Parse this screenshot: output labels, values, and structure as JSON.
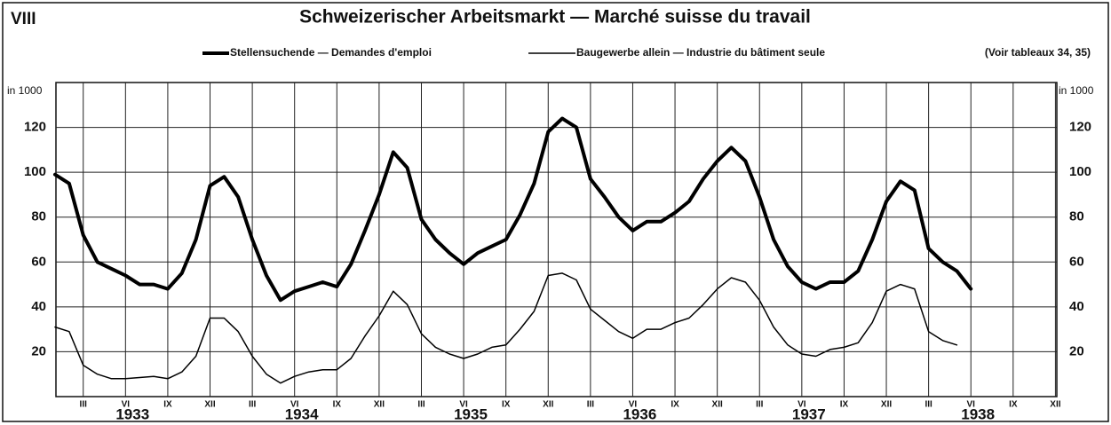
{
  "chart_data": {
    "type": "line",
    "badge": "VIII",
    "title": "Schweizerischer Arbeitsmarkt — Marché suisse du travail",
    "note": "(Voir tableaux 34, 35)",
    "ylabel": "in 1000",
    "x": [
      "1933-01",
      "1933-02",
      "1933-03",
      "1933-04",
      "1933-05",
      "1933-06",
      "1933-07",
      "1933-08",
      "1933-09",
      "1933-10",
      "1933-11",
      "1933-12",
      "1934-01",
      "1934-02",
      "1934-03",
      "1934-04",
      "1934-05",
      "1934-06",
      "1934-07",
      "1934-08",
      "1934-09",
      "1934-10",
      "1934-11",
      "1934-12",
      "1935-01",
      "1935-02",
      "1935-03",
      "1935-04",
      "1935-05",
      "1935-06",
      "1935-07",
      "1935-08",
      "1935-09",
      "1935-10",
      "1935-11",
      "1935-12",
      "1936-01",
      "1936-02",
      "1936-03",
      "1936-04",
      "1936-05",
      "1936-06",
      "1936-07",
      "1936-08",
      "1936-09",
      "1936-10",
      "1936-11",
      "1936-12",
      "1937-01",
      "1937-02",
      "1937-03",
      "1937-04",
      "1937-05",
      "1937-06",
      "1937-07",
      "1937-08",
      "1937-09",
      "1937-10",
      "1937-11",
      "1937-12",
      "1938-01",
      "1938-02",
      "1938-03",
      "1938-04",
      "1938-05",
      "1938-06"
    ],
    "series": [
      {
        "name": "Stellensuchende — Demandes d'emploi",
        "color": "#000000",
        "linewidth": 4,
        "values": [
          99,
          95,
          72,
          60,
          57,
          54,
          50,
          50,
          48,
          55,
          70,
          94,
          98,
          89,
          70,
          54,
          43,
          47,
          49,
          51,
          49,
          59,
          74,
          90,
          109,
          102,
          79,
          70,
          64,
          59,
          64,
          67,
          70,
          81,
          95,
          118,
          124,
          120,
          97,
          89,
          80,
          74,
          78,
          78,
          82,
          87,
          97,
          105,
          111,
          105,
          89,
          70,
          58,
          51,
          48,
          51,
          51,
          56,
          70,
          87,
          96,
          92,
          66,
          60,
          56,
          48
        ]
      },
      {
        "name": "Baugewerbe allein — Industrie du bâtiment seule",
        "color": "#000000",
        "linewidth": 1.5,
        "values": [
          31,
          29,
          14,
          10,
          8,
          8,
          8.5,
          9,
          8,
          11,
          18,
          35,
          35,
          29,
          18,
          10,
          6,
          9,
          11,
          12,
          12,
          17,
          27,
          36,
          47,
          41,
          28,
          22,
          19,
          17,
          19,
          22,
          23,
          30,
          38,
          54,
          55,
          52,
          39,
          34,
          29,
          26,
          30,
          30,
          33,
          35,
          41,
          48,
          53,
          51,
          43,
          31,
          23,
          19,
          18,
          21,
          22,
          24,
          33,
          47,
          50,
          48,
          29,
          25,
          23,
          null
        ]
      }
    ],
    "xlim": [
      "1933-01",
      "1938-12"
    ],
    "xticks": [
      {
        "value": "1933-03",
        "label": "III"
      },
      {
        "value": "1933-06",
        "label": "VI"
      },
      {
        "value": "1933-09",
        "label": "IX"
      },
      {
        "value": "1933-12",
        "label": "XII"
      },
      {
        "value": "1934-03",
        "label": "III"
      },
      {
        "value": "1934-06",
        "label": "VI"
      },
      {
        "value": "1934-09",
        "label": "IX"
      },
      {
        "value": "1934-12",
        "label": "XII"
      },
      {
        "value": "1935-03",
        "label": "III"
      },
      {
        "value": "1935-06",
        "label": "VI"
      },
      {
        "value": "1935-09",
        "label": "IX"
      },
      {
        "value": "1935-12",
        "label": "XII"
      },
      {
        "value": "1936-03",
        "label": "III"
      },
      {
        "value": "1936-06",
        "label": "VI"
      },
      {
        "value": "1936-09",
        "label": "IX"
      },
      {
        "value": "1936-12",
        "label": "XII"
      },
      {
        "value": "1937-03",
        "label": "III"
      },
      {
        "value": "1937-06",
        "label": "VI"
      },
      {
        "value": "1937-09",
        "label": "IX"
      },
      {
        "value": "1937-12",
        "label": "XII"
      },
      {
        "value": "1938-03",
        "label": "III"
      },
      {
        "value": "1938-06",
        "label": "VI"
      },
      {
        "value": "1938-09",
        "label": "IX"
      },
      {
        "value": "1938-12",
        "label": "XII"
      }
    ],
    "year_labels": [
      "1933",
      "1934",
      "1935",
      "1936",
      "1937",
      "1938"
    ],
    "ylim": [
      0,
      140
    ],
    "yticks": [
      20,
      40,
      60,
      80,
      100,
      120
    ],
    "grid": true
  }
}
